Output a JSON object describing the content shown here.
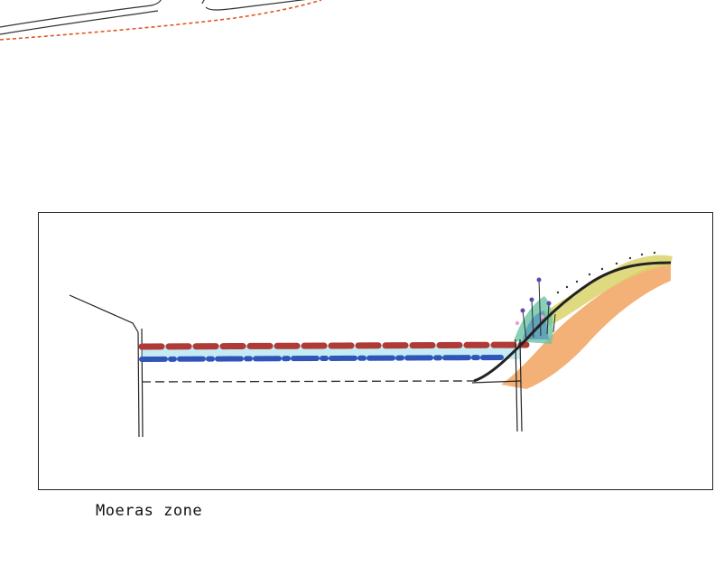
{
  "caption": "Moeras zone",
  "colors": {
    "upper_water_dash": "#b03a35",
    "lower_water_dash": "#2f55b8",
    "water_fill": "#7fd3e8",
    "soil": "#f2a768",
    "bank_grass": "#d9d36a",
    "outline": "#222222",
    "top_red_dash": "#e0571f"
  }
}
